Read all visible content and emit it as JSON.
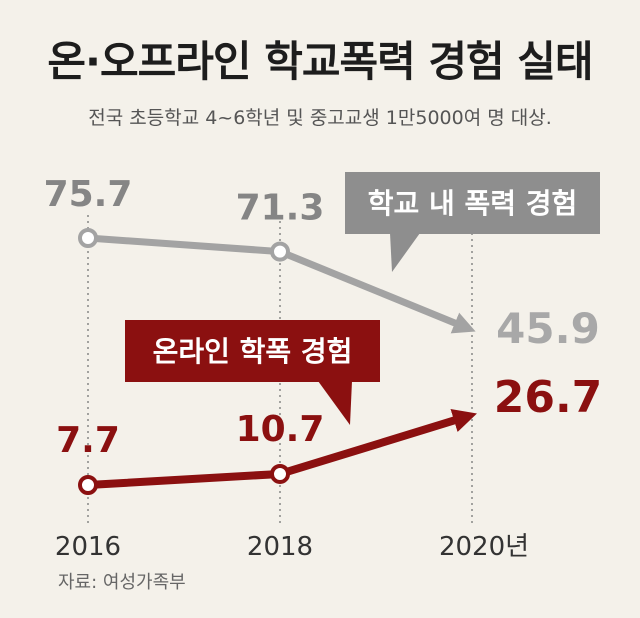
{
  "title": "온·오프라인 학교폭력 경험 실태",
  "subtitle": "전국 초등학교 4~6학년 및 중고교생 1만5000여 명 대상.",
  "source": "자료: 여성가족부",
  "colors": {
    "offline": "#a3a3a3",
    "online": "#8b1010",
    "background": "#f4f1ea"
  },
  "chart_data": {
    "type": "line",
    "categories": [
      "2016",
      "2018",
      "2020년"
    ],
    "series": [
      {
        "name": "학교 내 폭력 경험",
        "values": [
          75.7,
          71.3,
          45.9
        ],
        "value_labels": [
          "75.7",
          "71.3",
          "45.9"
        ]
      },
      {
        "name": "온라인 학폭 경험",
        "values": [
          7.7,
          10.7,
          26.7
        ],
        "value_labels": [
          "7.7",
          "10.7",
          "26.7"
        ]
      }
    ],
    "grid": false,
    "legend": "callout-labels"
  }
}
